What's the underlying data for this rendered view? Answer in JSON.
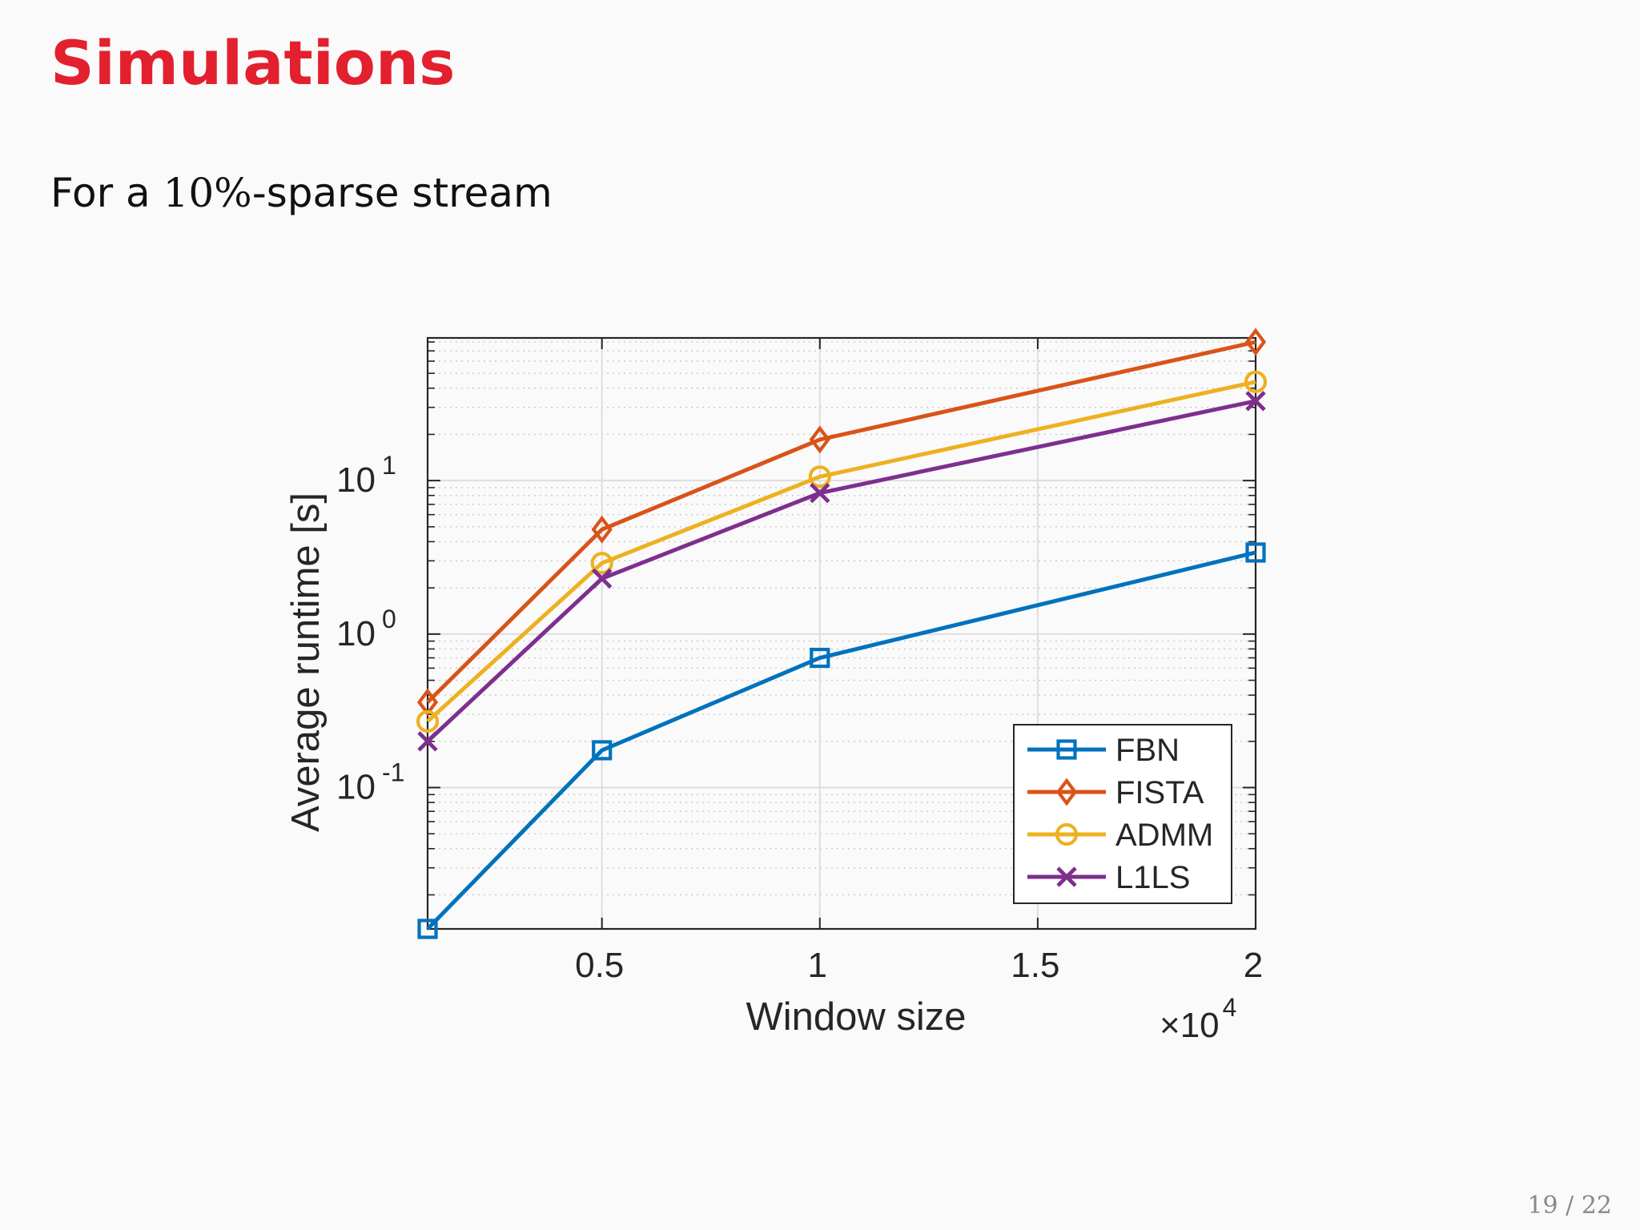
{
  "slide": {
    "title": "Simulations",
    "subtitle_prefix": "For a ",
    "subtitle_math": "10%",
    "subtitle_suffix": "-sparse stream",
    "page_number": "19 / 22",
    "title_color": "#e3202e"
  },
  "chart_data": {
    "type": "line",
    "title": "",
    "xlabel": "Window size",
    "ylabel": "Average runtime [s]",
    "x_multiplier_label": "×10",
    "x_multiplier_exponent": "4",
    "x_scale": 10000,
    "xlim": [
      1000,
      20000
    ],
    "ylim": [
      0.012,
      85
    ],
    "yscale": "log",
    "grid": true,
    "minor_grid": true,
    "legend_position": "bottom-right",
    "x_ticks": [
      {
        "value": 5000,
        "label": "0.5"
      },
      {
        "value": 10000,
        "label": "1"
      },
      {
        "value": 15000,
        "label": "1.5"
      },
      {
        "value": 20000,
        "label": "2"
      }
    ],
    "y_ticks": [
      {
        "value": 0.1,
        "base": "10",
        "exp": "-1"
      },
      {
        "value": 1,
        "base": "10",
        "exp": "0"
      },
      {
        "value": 10,
        "base": "10",
        "exp": "1"
      }
    ],
    "x": [
      1000,
      5000,
      10000,
      20000
    ],
    "series": [
      {
        "name": "FBN",
        "color": "#0072bd",
        "marker": "square",
        "values": [
          0.012,
          0.175,
          0.7,
          3.4
        ]
      },
      {
        "name": "FISTA",
        "color": "#d95319",
        "marker": "diamond",
        "values": [
          0.36,
          4.8,
          18.5,
          80
        ]
      },
      {
        "name": "ADMM",
        "color": "#edb120",
        "marker": "circle",
        "values": [
          0.27,
          2.9,
          10.6,
          44
        ]
      },
      {
        "name": "L1LS",
        "color": "#7e2f8e",
        "marker": "x",
        "values": [
          0.2,
          2.3,
          8.3,
          33
        ]
      }
    ]
  }
}
